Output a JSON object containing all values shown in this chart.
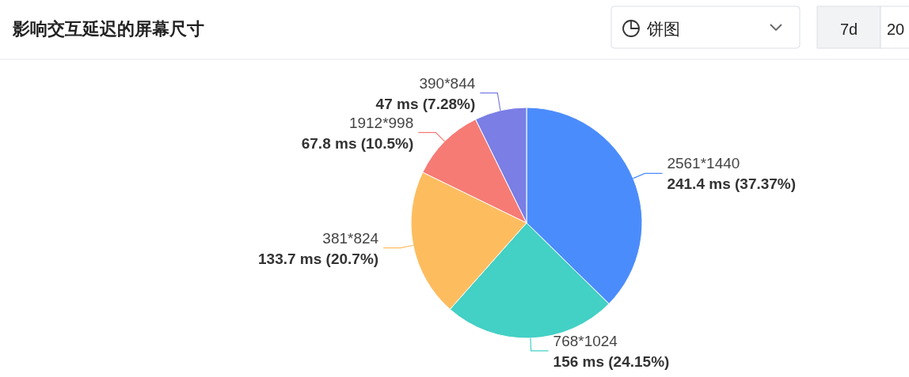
{
  "chart_data": {
    "type": "pie",
    "title": "影响交互延迟的屏幕尺寸",
    "categories": [
      "2561*1440",
      "768*1024",
      "381*824",
      "1912*998",
      "390*844"
    ],
    "values": [
      241.4,
      156,
      133.7,
      67.8,
      47
    ],
    "colors": [
      "#4b8cfc",
      "#43d0c5",
      "#fdbd5f",
      "#f67b75",
      "#7a7ee5"
    ],
    "value_labels": [
      "241.4 ms (37.37%)",
      "156 ms (24.15%)",
      "133.7 ms (20.7%)",
      "67.8 ms (10.5%)",
      "47 ms (7.28%)"
    ],
    "annotations": [
      "饼图",
      "7d",
      "20"
    ]
  }
}
